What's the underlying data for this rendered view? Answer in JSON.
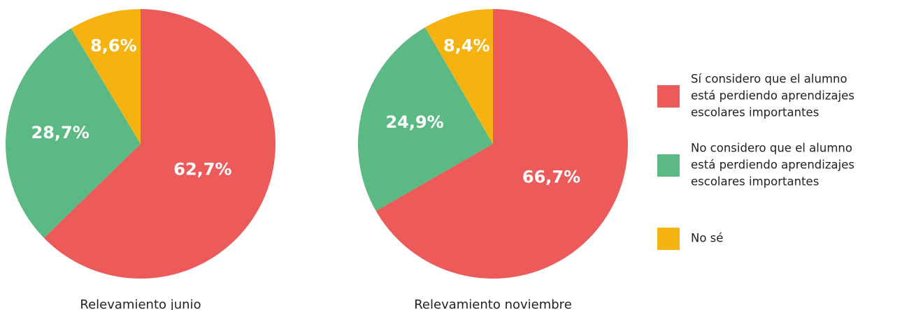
{
  "chart_data": [
    {
      "type": "pie",
      "title": "Relevamiento junio",
      "values": [
        62.7,
        28.7,
        8.6
      ],
      "value_labels": [
        "62,7%",
        "28,7%",
        "8,6%"
      ],
      "colors": [
        "#ec5a5a",
        "#5bb983",
        "#f6b20f"
      ]
    },
    {
      "type": "pie",
      "title": "Relevamiento noviembre",
      "values": [
        66.7,
        24.9,
        8.4
      ],
      "value_labels": [
        "66,7%",
        "24,9%",
        "8,4%"
      ],
      "colors": [
        "#ec5a5a",
        "#5bb983",
        "#f6b20f"
      ]
    }
  ],
  "legend": [
    {
      "label": [
        "Sí considero que el alumno",
        "está perdiendo aprendizajes",
        "escolares importantes"
      ],
      "color": "#ec5a5a"
    },
    {
      "label": [
        "No considero que el alumno",
        "está perdiendo aprendizajes",
        "escolares importantes"
      ],
      "color": "#5bb983"
    },
    {
      "label": [
        "No sé"
      ],
      "color": "#f6b20f"
    }
  ]
}
